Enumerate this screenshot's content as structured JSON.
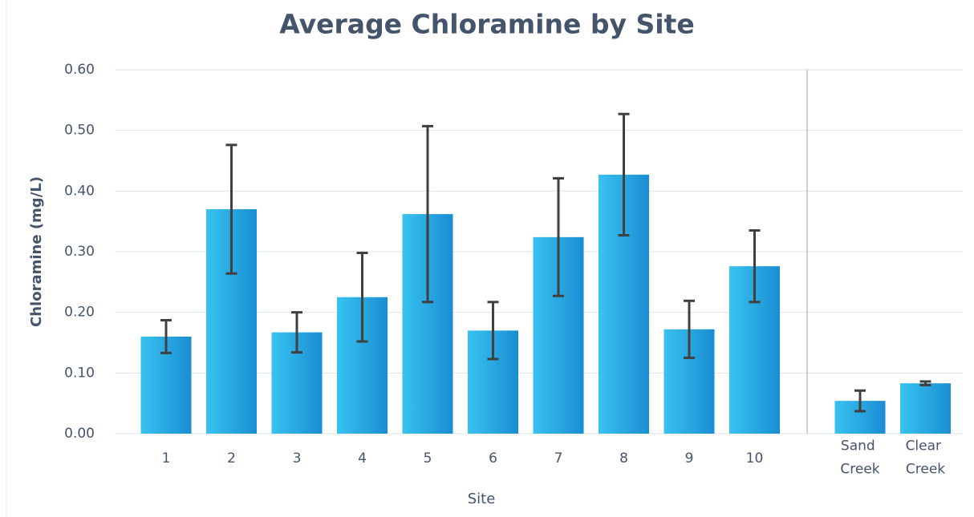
{
  "chart_data": {
    "type": "bar",
    "title": "Average Chloramine by Site",
    "x_label": "Site",
    "y_label": "Chloramine (mg/L)",
    "categories": [
      "1",
      "2",
      "3",
      "4",
      "5",
      "6",
      "7",
      "8",
      "9",
      "10",
      "Sand Creek",
      "Clear Creek"
    ],
    "values": [
      0.16,
      0.37,
      0.167,
      0.225,
      0.362,
      0.17,
      0.324,
      0.427,
      0.172,
      0.276,
      0.054,
      0.083
    ],
    "errors": [
      0.027,
      0.106,
      0.033,
      0.073,
      0.145,
      0.047,
      0.097,
      0.1,
      0.047,
      0.059,
      0.017,
      0.003
    ],
    "gradient": [
      "#38c3f0",
      "#1a8dd2"
    ],
    "error_color": "#404040",
    "ylim": [
      0,
      0.6
    ],
    "yticks": [
      {
        "value": 0,
        "label": "0.00"
      },
      {
        "value": 0.1,
        "label": "0.10"
      },
      {
        "value": 0.2,
        "label": "0.20"
      },
      {
        "value": 0.3,
        "label": "0.30"
      },
      {
        "value": 0.4,
        "label": "0.40"
      },
      {
        "value": 0.5,
        "label": "0.50"
      },
      {
        "value": 0.6,
        "label": "0.60"
      }
    ],
    "grid": true
  }
}
